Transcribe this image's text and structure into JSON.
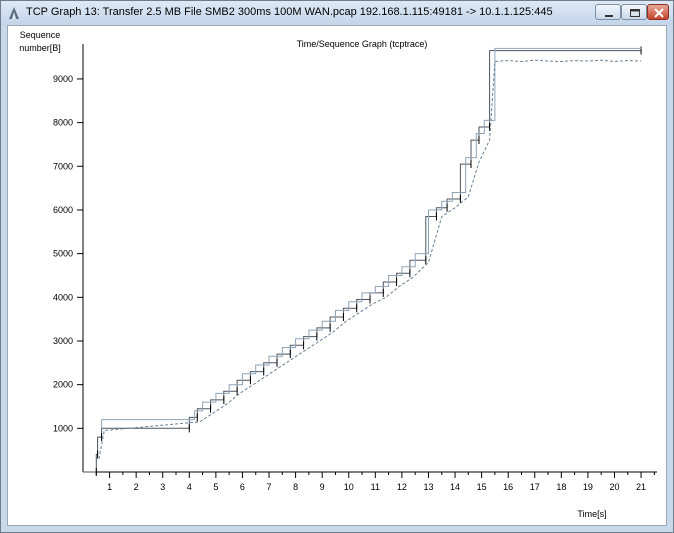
{
  "window": {
    "title": "TCP Graph 13: Transfer 2.5 MB File SMB2 300ms 100M WAN.pcap 192.168.1.115:49181 -> 10.1.1.125:445"
  },
  "chart_data": {
    "type": "line",
    "title": "Time/Sequence Graph (tcptrace)",
    "ylabel_line1": "Sequence",
    "ylabel_line2": "number[B]",
    "xlabel": "Time[s]",
    "xlim": [
      0,
      21.6
    ],
    "ylim": [
      0,
      9800
    ],
    "x_ticks": [
      1,
      2,
      3,
      4,
      5,
      6,
      7,
      8,
      9,
      10,
      11,
      12,
      13,
      14,
      15,
      16,
      17,
      18,
      19,
      20,
      21
    ],
    "y_ticks": [
      1000,
      2000,
      3000,
      4000,
      5000,
      6000,
      7000,
      8000,
      9000
    ],
    "grid": false,
    "series": [
      {
        "style": "ack",
        "color": "#4a5560",
        "x": [
          0,
          0.5,
          0.5,
          0.55,
          0.55,
          0.7,
          0.7,
          4.0,
          4.0,
          4.3,
          4.3,
          4.8,
          4.8,
          5.3,
          5.3,
          5.8,
          5.8,
          6.3,
          6.3,
          6.8,
          6.8,
          7.3,
          7.3,
          7.8,
          7.8,
          8.3,
          8.3,
          8.8,
          8.8,
          9.3,
          9.3,
          9.8,
          9.8,
          10.3,
          10.3,
          10.8,
          10.8,
          11.3,
          11.3,
          11.8,
          11.8,
          12.3,
          12.3,
          12.9,
          12.9,
          13.3,
          13.3,
          13.7,
          13.7,
          14.2,
          14.2,
          14.6,
          14.6,
          14.9,
          14.9,
          15.3,
          15.3,
          21.0
        ],
        "y": [
          0,
          0,
          400,
          400,
          800,
          800,
          1000,
          1000,
          1250,
          1250,
          1450,
          1450,
          1650,
          1650,
          1850,
          1850,
          2100,
          2100,
          2300,
          2300,
          2500,
          2500,
          2700,
          2700,
          2900,
          2900,
          3100,
          3100,
          3300,
          3300,
          3550,
          3550,
          3750,
          3750,
          3950,
          3950,
          4100,
          4100,
          4350,
          4350,
          4550,
          4550,
          4850,
          4850,
          5850,
          5850,
          6050,
          6050,
          6250,
          6250,
          7050,
          7050,
          7600,
          7600,
          7900,
          7900,
          9650,
          9650
        ]
      },
      {
        "style": "window",
        "color": "#8fa3b8",
        "x": [
          0.7,
          0.7,
          4.2,
          4.2,
          4.5,
          4.5,
          5.0,
          5.0,
          5.5,
          5.5,
          6.0,
          6.0,
          6.5,
          6.5,
          7.0,
          7.0,
          7.5,
          7.5,
          8.0,
          8.0,
          8.5,
          8.5,
          9.0,
          9.0,
          9.5,
          9.5,
          10.0,
          10.0,
          10.5,
          10.5,
          11.0,
          11.0,
          11.5,
          11.5,
          12.0,
          12.0,
          12.5,
          12.5,
          13.0,
          13.0,
          13.5,
          13.5,
          13.9,
          13.9,
          14.4,
          14.4,
          14.8,
          14.8,
          15.1,
          15.1,
          15.5,
          15.5,
          21.0
        ],
        "y": [
          1000,
          1200,
          1200,
          1400,
          1400,
          1600,
          1600,
          1800,
          1800,
          2000,
          2000,
          2250,
          2250,
          2450,
          2450,
          2650,
          2650,
          2850,
          2850,
          3050,
          3050,
          3250,
          3250,
          3450,
          3450,
          3700,
          3700,
          3900,
          3900,
          4100,
          4100,
          4250,
          4250,
          4500,
          4500,
          4700,
          4700,
          5000,
          5000,
          6000,
          6000,
          6200,
          6200,
          6400,
          6400,
          7200,
          7200,
          7750,
          7750,
          8050,
          8050,
          9700,
          9700
        ]
      },
      {
        "style": "sack",
        "color": "#6a7f97",
        "x": [
          0.6,
          0.8,
          4.4,
          4.9,
          5.4,
          5.9,
          6.4,
          6.9,
          7.4,
          7.9,
          8.4,
          8.9,
          9.4,
          9.9,
          10.4,
          10.9,
          11.4,
          11.9,
          12.4,
          13.0,
          13.5,
          14.0,
          14.5,
          14.9,
          15.3,
          15.5,
          16,
          16.5,
          17,
          17.5,
          18,
          18.5,
          19,
          19.5,
          20,
          20.5,
          21.0
        ],
        "y": [
          300,
          950,
          1150,
          1350,
          1550,
          1800,
          2000,
          2200,
          2400,
          2600,
          2800,
          3000,
          3200,
          3450,
          3650,
          3850,
          4000,
          4250,
          4450,
          4800,
          5850,
          6050,
          6300,
          7100,
          7600,
          9400,
          9420,
          9400,
          9430,
          9410,
          9400,
          9420,
          9410,
          9430,
          9400,
          9420,
          9410
        ]
      }
    ]
  }
}
